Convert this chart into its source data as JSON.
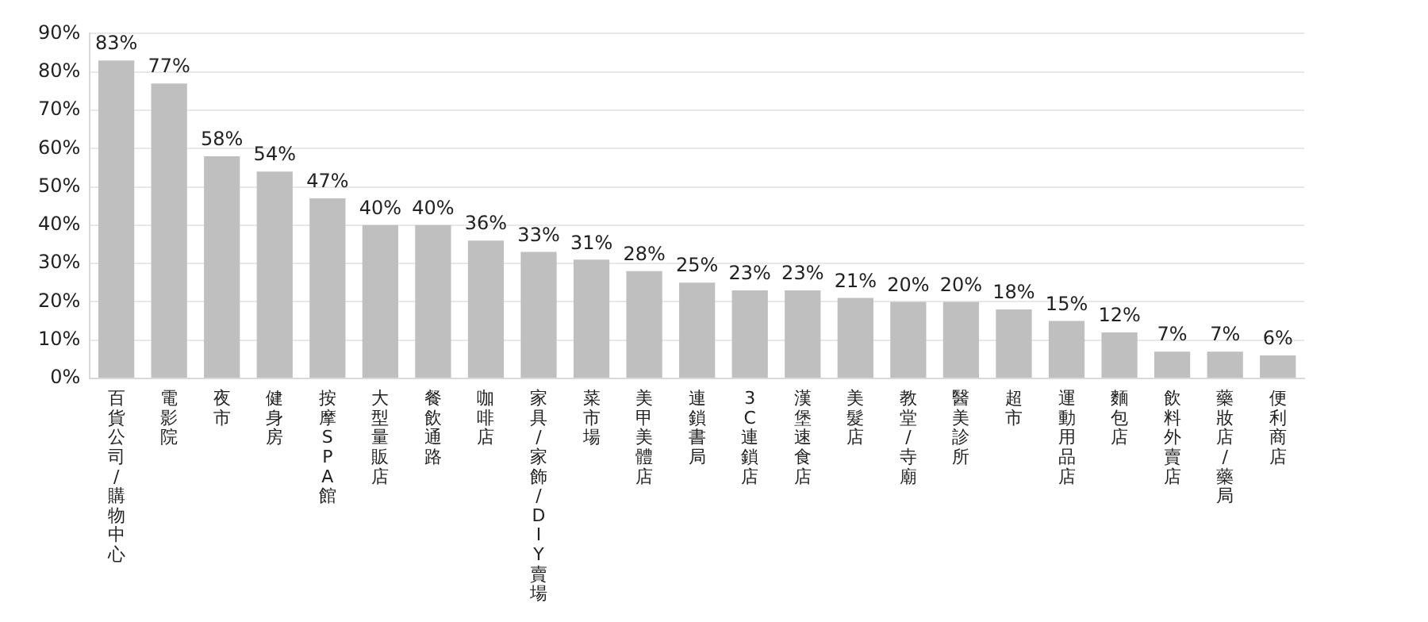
{
  "chart_data": {
    "type": "bar",
    "categories": [
      "百貨公司 / 購物中心",
      "電影院",
      "夜市",
      "健身房",
      "按摩SPA館",
      "大型量販店",
      "餐飲通路",
      "咖啡店",
      "家具/家飾/DIY賣場",
      "菜市場",
      "美甲美體店",
      "連鎖書局",
      "3C連鎖店",
      "漢堡速食店",
      "美髮店",
      "教堂/寺廟",
      "醫美診所",
      "超市",
      "運動用品店",
      "麵包店",
      "飲料外賣店",
      "藥妝店/藥局",
      "便利商店"
    ],
    "values": [
      83,
      77,
      58,
      54,
      47,
      40,
      40,
      36,
      33,
      31,
      28,
      25,
      23,
      23,
      21,
      20,
      20,
      18,
      15,
      12,
      7,
      7,
      6
    ],
    "value_labels": [
      "83%",
      "77%",
      "58%",
      "54%",
      "47%",
      "40%",
      "40%",
      "36%",
      "33%",
      "31%",
      "28%",
      "25%",
      "23%",
      "23%",
      "21%",
      "20%",
      "20%",
      "18%",
      "15%",
      "12%",
      "7%",
      "7%",
      "6%"
    ],
    "color": "#bfbfbf",
    "ylim": [
      0,
      90
    ],
    "yticks": [
      {
        "value": 0,
        "label": "0%"
      },
      {
        "value": 10,
        "label": "10%"
      },
      {
        "value": 20,
        "label": "20%"
      },
      {
        "value": 30,
        "label": "30%"
      },
      {
        "value": 40,
        "label": "40%"
      },
      {
        "value": 50,
        "label": "50%"
      },
      {
        "value": 60,
        "label": "60%"
      },
      {
        "value": 70,
        "label": "70%"
      },
      {
        "value": 80,
        "label": "80%"
      },
      {
        "value": 90,
        "label": "90%"
      }
    ],
    "grid": "y",
    "legend": false
  }
}
